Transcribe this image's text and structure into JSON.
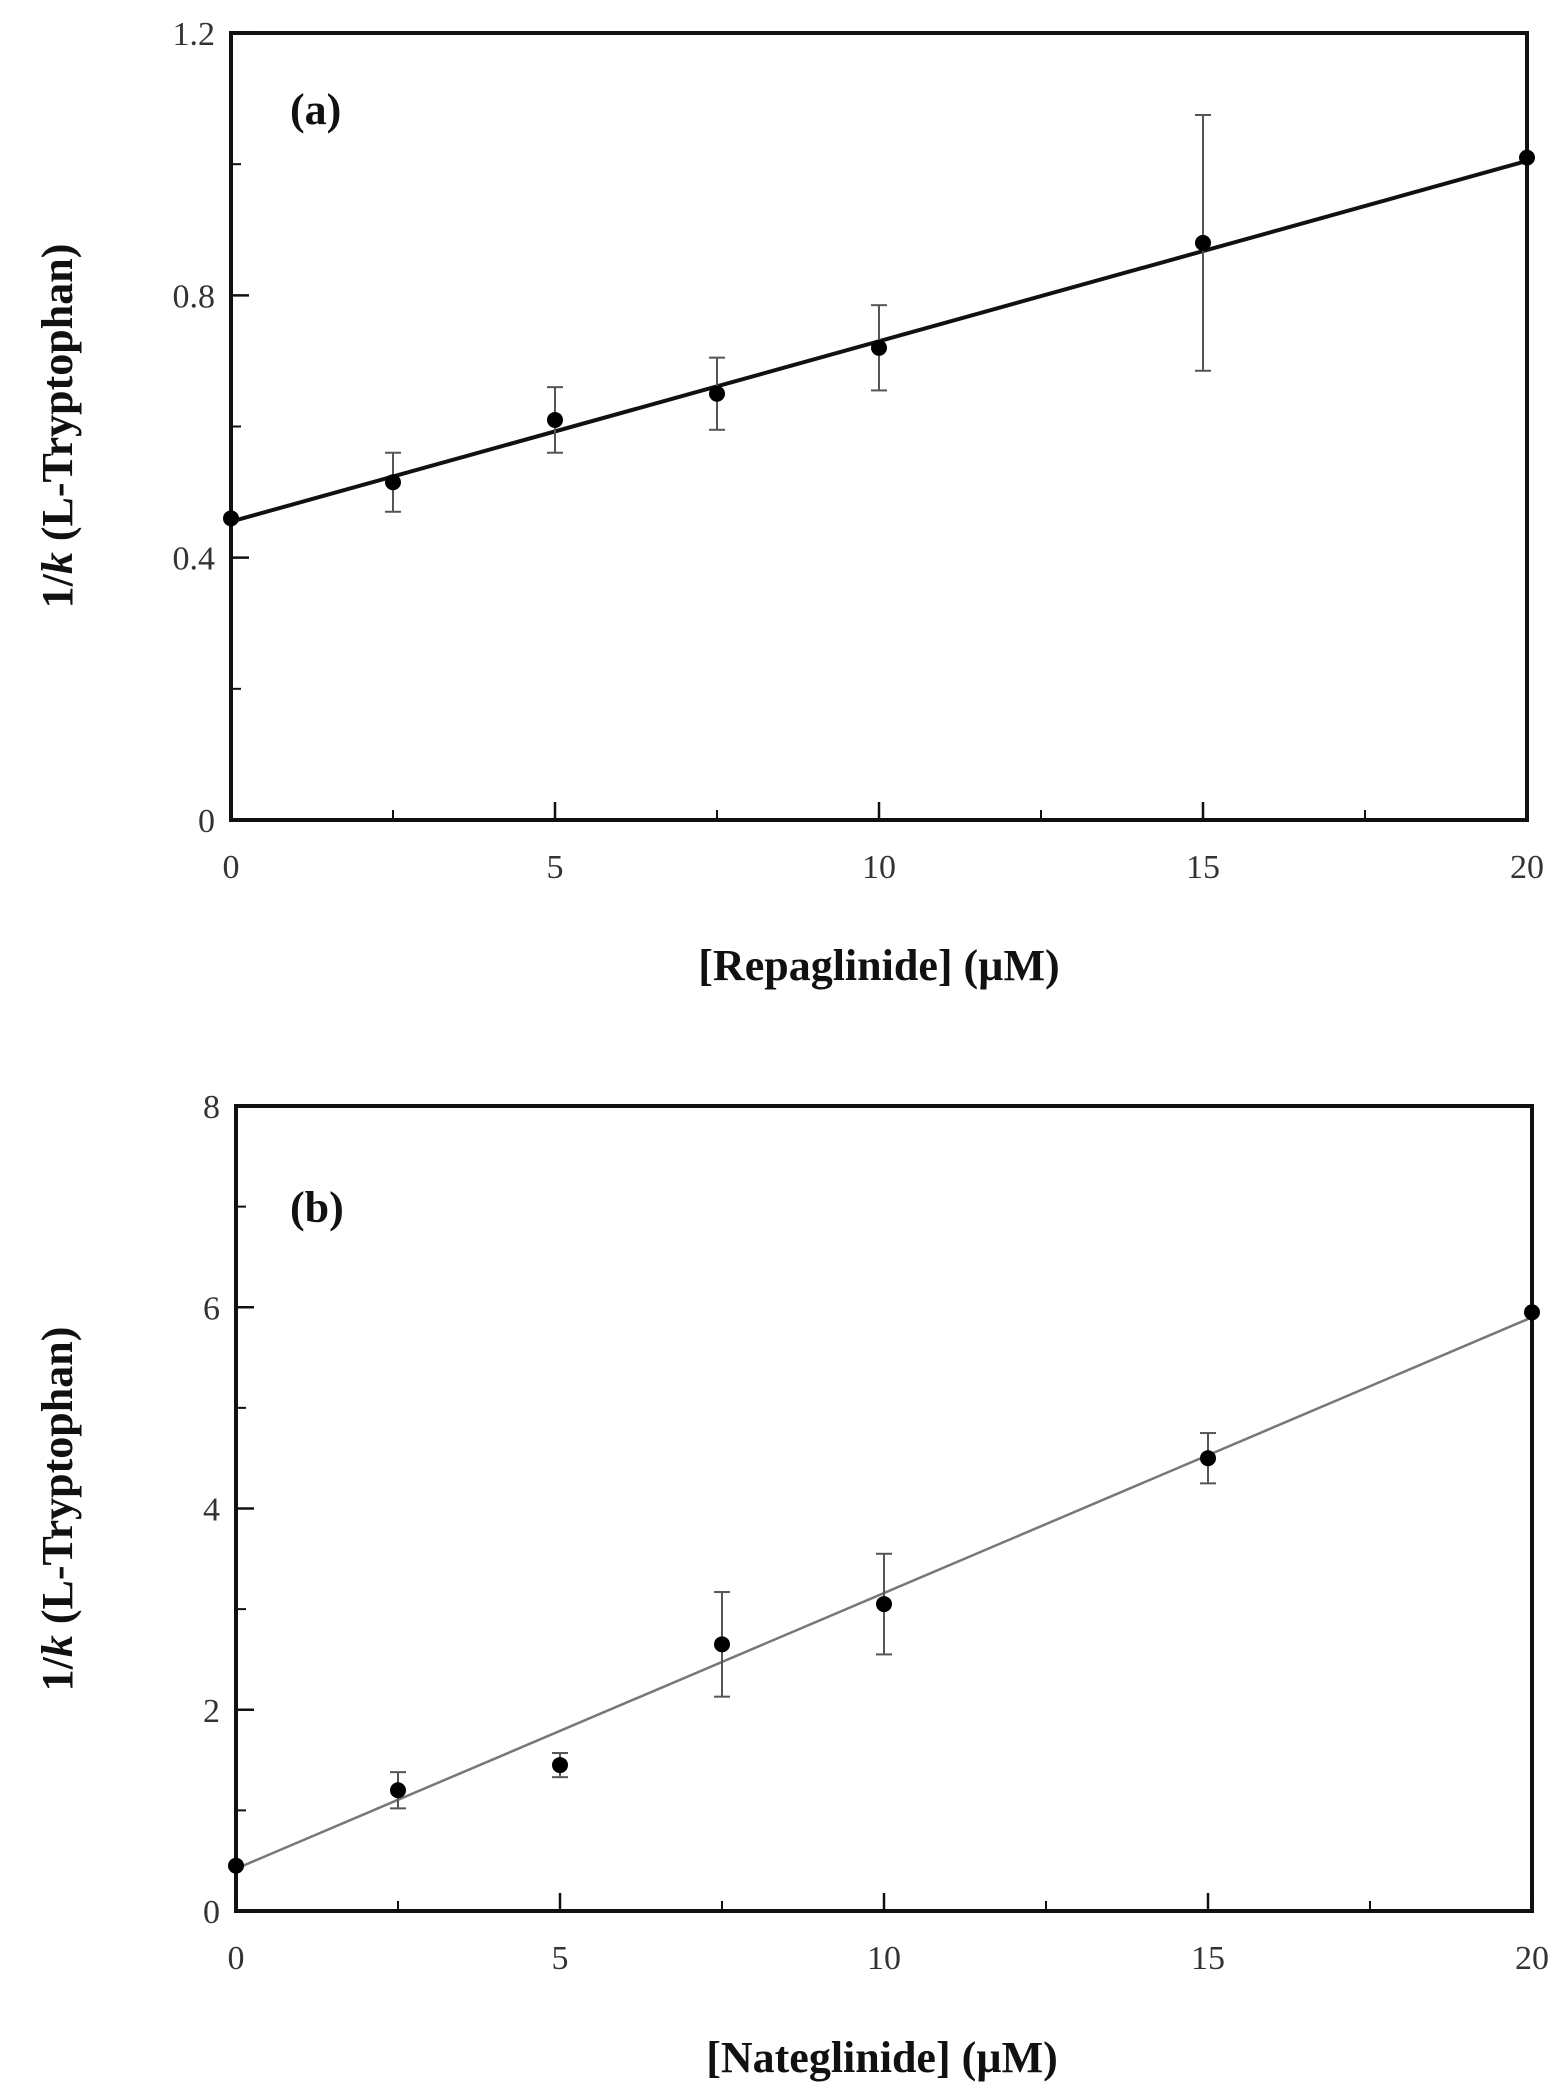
{
  "chart_data": [
    {
      "type": "scatter",
      "panel_label": "(a)",
      "xlabel": "[Repaglinide]  (µM)",
      "ylabel_prefix": "1/",
      "ylabel_var": "k",
      "ylabel_suffix": " (L-Tryptophan)",
      "xlim": [
        0,
        20
      ],
      "ylim": [
        0,
        1.2
      ],
      "x_ticks": [
        0,
        5,
        10,
        15,
        20
      ],
      "x_tick_labels": [
        "0",
        "5",
        "10",
        "15",
        "20"
      ],
      "y_ticks": [
        0,
        0.4,
        0.8,
        1.2
      ],
      "y_tick_labels": [
        "0",
        "0.4",
        "0.8",
        "1.2"
      ],
      "grid": false,
      "points": [
        {
          "x": 0,
          "y": 0.46,
          "err": 0
        },
        {
          "x": 2.5,
          "y": 0.515,
          "err": 0.045
        },
        {
          "x": 5,
          "y": 0.61,
          "err": 0.05
        },
        {
          "x": 7.5,
          "y": 0.65,
          "err": 0.055
        },
        {
          "x": 10,
          "y": 0.72,
          "err": 0.065
        },
        {
          "x": 15,
          "y": 0.88,
          "err": 0.195
        },
        {
          "x": 20,
          "y": 1.01,
          "err": 0
        }
      ],
      "fit_line": {
        "x": [
          0,
          20
        ],
        "y": [
          0.455,
          1.005
        ]
      }
    },
    {
      "type": "scatter",
      "panel_label": "(b)",
      "xlabel": "[Nateglinide]  (µM)",
      "ylabel_prefix": "1/",
      "ylabel_var": "k",
      "ylabel_suffix": " (L-Tryptophan)",
      "xlim": [
        0,
        20
      ],
      "ylim": [
        0,
        8
      ],
      "x_ticks": [
        0,
        5,
        10,
        15,
        20
      ],
      "x_tick_labels": [
        "0",
        "5",
        "10",
        "15",
        "20"
      ],
      "y_ticks": [
        0,
        2,
        4,
        6,
        8
      ],
      "y_tick_labels": [
        "0",
        "2",
        "4",
        "6",
        "8"
      ],
      "grid": false,
      "points": [
        {
          "x": 0,
          "y": 0.45,
          "err": 0
        },
        {
          "x": 2.5,
          "y": 1.2,
          "err": 0.18
        },
        {
          "x": 5,
          "y": 1.45,
          "err": 0.12
        },
        {
          "x": 7.5,
          "y": 2.65,
          "err": 0.52
        },
        {
          "x": 10,
          "y": 3.05,
          "err": 0.5
        },
        {
          "x": 15,
          "y": 4.5,
          "err": 0.25
        },
        {
          "x": 20,
          "y": 5.95,
          "err": 0
        }
      ],
      "fit_line": {
        "x": [
          0,
          20
        ],
        "y": [
          0.42,
          5.9
        ]
      }
    }
  ]
}
